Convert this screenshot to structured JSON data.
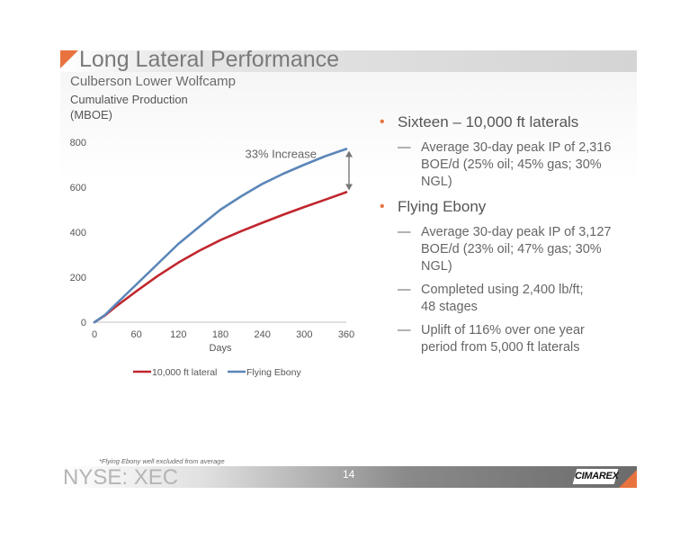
{
  "slide": {
    "title": "Long Lateral Performance",
    "subtitle": "Culberson Lower Wolfcamp",
    "footnote": "*Flying Ebony well excluded from average",
    "footer_ticker": "NYSE: XEC",
    "page_number": "14",
    "logo_text": "CIMAREX",
    "colors": {
      "accent": "#e8733f",
      "series_red": "#c0262e",
      "series_blue": "#5b86b8"
    }
  },
  "bullets": [
    {
      "text": "Sixteen – 10,000 ft laterals",
      "subs": [
        {
          "lines": [
            "Average 30-day peak IP of 2,316",
            "BOE/d (25% oil; 45% gas; 30%",
            "NGL)"
          ]
        }
      ]
    },
    {
      "text": "Flying Ebony",
      "subs": [
        {
          "lines": [
            "Average 30-day peak IP of 3,127",
            "BOE/d (23% oil; 47% gas; 30%",
            "NGL)"
          ]
        },
        {
          "lines": [
            "Completed using 2,400 lb/ft;",
            "48 stages"
          ]
        },
        {
          "lines": [
            "Uplift of 116% over one year",
            "period from 5,000 ft laterals"
          ]
        }
      ]
    }
  ],
  "chart_data": {
    "type": "line",
    "ylabel_lines": [
      "Cumulative Production",
      "(MBOE)"
    ],
    "xlabel": "Days",
    "xlim": [
      0,
      360
    ],
    "ylim": [
      0,
      800
    ],
    "x_ticks": [
      0,
      60,
      120,
      180,
      240,
      300,
      360
    ],
    "y_ticks": [
      0,
      200,
      400,
      600,
      800
    ],
    "grid": false,
    "legend_position": "bottom",
    "annotation": {
      "text": "33% Increase",
      "x": 360,
      "y_from": 578,
      "y_to": 770
    },
    "x": [
      0,
      15,
      30,
      60,
      90,
      120,
      150,
      180,
      210,
      240,
      270,
      300,
      330,
      360
    ],
    "series": [
      {
        "name": "10,000 ft lateral",
        "color": "#c0262e",
        "values": [
          0,
          30,
          68,
          138,
          205,
          265,
          318,
          365,
          405,
          442,
          478,
          512,
          545,
          578
        ]
      },
      {
        "name": "Flying Ebony",
        "color": "#5b86b8",
        "values": [
          0,
          32,
          78,
          168,
          258,
          348,
          425,
          500,
          560,
          615,
          660,
          700,
          738,
          770
        ]
      }
    ]
  }
}
